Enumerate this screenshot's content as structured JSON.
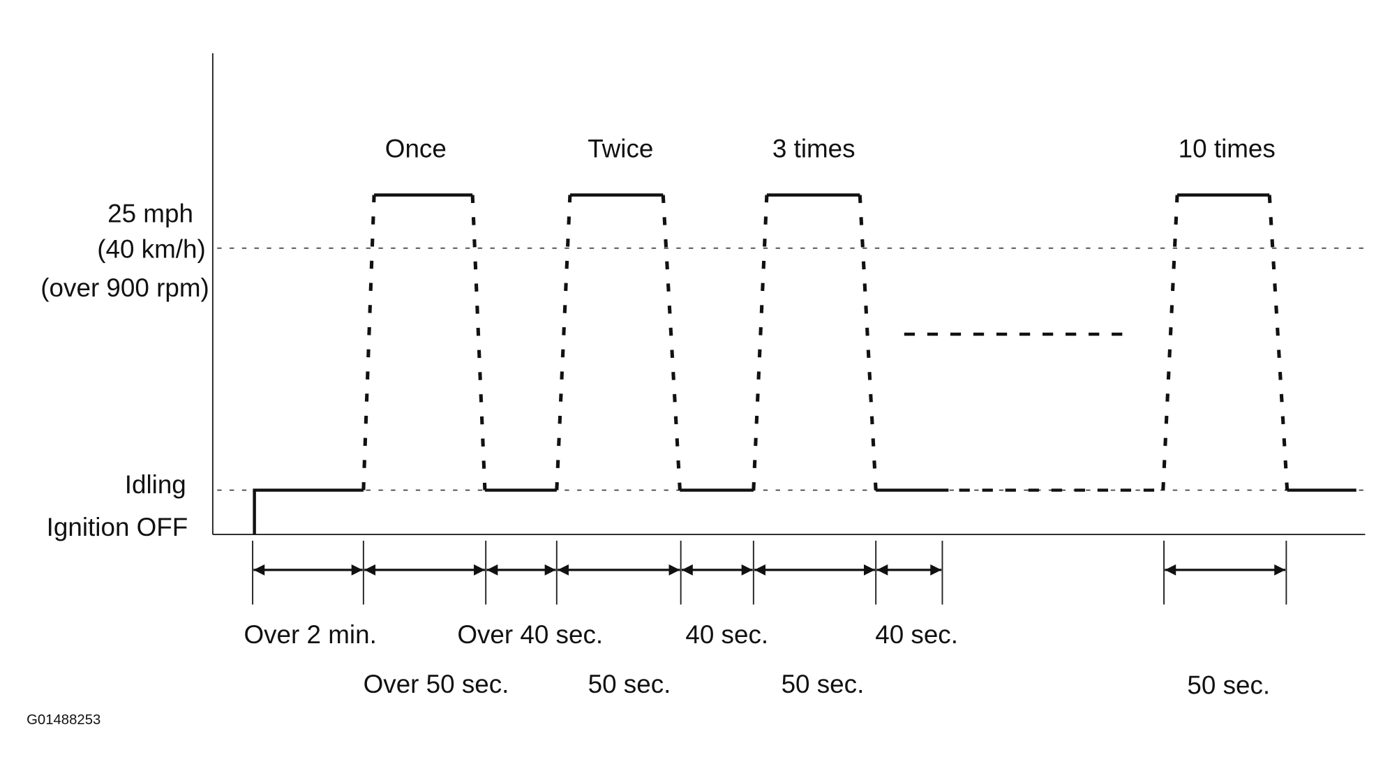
{
  "y_labels": [
    "25 mph",
    "(40 km/h)",
    "(over 900 rpm)",
    "Idling",
    "Ignition OFF"
  ],
  "cycles": [
    "Once",
    "Twice",
    "3 times",
    "10 times"
  ],
  "durations": [
    "Over 2 min.",
    "Over 50 sec.",
    "Over 40 sec.",
    "50 sec.",
    "40 sec.",
    "50 sec.",
    "40 sec.",
    "50 sec."
  ],
  "figure_id": "G01488253"
}
